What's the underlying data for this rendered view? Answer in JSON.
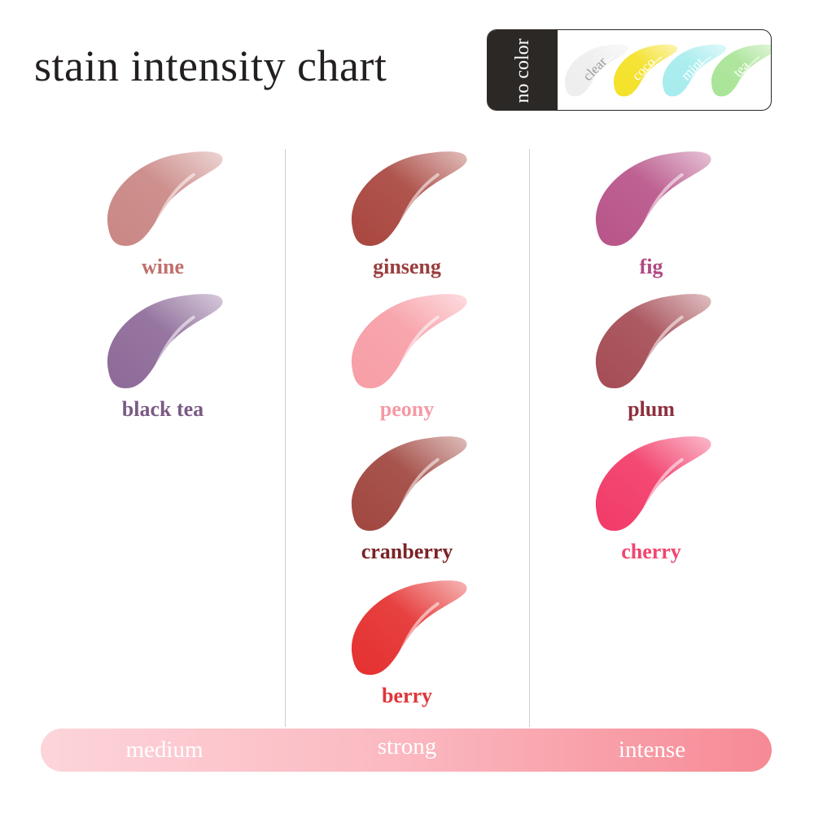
{
  "title": "stain intensity chart",
  "no_color_legend": {
    "label": "no color",
    "items": [
      {
        "name": "clear",
        "color": "#eeeeee",
        "text_color": "#9a9a9a"
      },
      {
        "name": "coco",
        "color": "#f4e126",
        "text_color": "#ffffff"
      },
      {
        "name": "mint",
        "color": "#a6ecee",
        "text_color": "#ffffff"
      },
      {
        "name": "tea",
        "color": "#a8e496",
        "text_color": "#ffffff"
      }
    ]
  },
  "columns": [
    {
      "intensity": "medium",
      "shades": [
        {
          "name": "wine",
          "color": "#c98784",
          "label_color": "#c06f6c"
        },
        {
          "name": "black tea",
          "color": "#8d6a98",
          "label_color": "#7b5a85"
        }
      ]
    },
    {
      "intensity": "strong",
      "shades": [
        {
          "name": "ginseng",
          "color": "#a9463f",
          "label_color": "#9a3d3d"
        },
        {
          "name": "peony",
          "color": "#f79ea6",
          "label_color": "#f49aa5"
        },
        {
          "name": "cranberry",
          "color": "#a0463f",
          "label_color": "#7a2326"
        },
        {
          "name": "berry",
          "color": "#e4302f",
          "label_color": "#e0353a"
        }
      ]
    },
    {
      "intensity": "intense",
      "shades": [
        {
          "name": "fig",
          "color": "#b85489",
          "label_color": "#b2487f"
        },
        {
          "name": "plum",
          "color": "#a54c55",
          "label_color": "#8e2f3d"
        },
        {
          "name": "cherry",
          "color": "#f23a68",
          "label_color": "#f0456f"
        }
      ]
    }
  ],
  "intensity_bar": {
    "labels": [
      "medium",
      "strong",
      "intense"
    ],
    "colors": [
      "#fcd5da",
      "#fbb8c0",
      "#f68a95"
    ]
  }
}
